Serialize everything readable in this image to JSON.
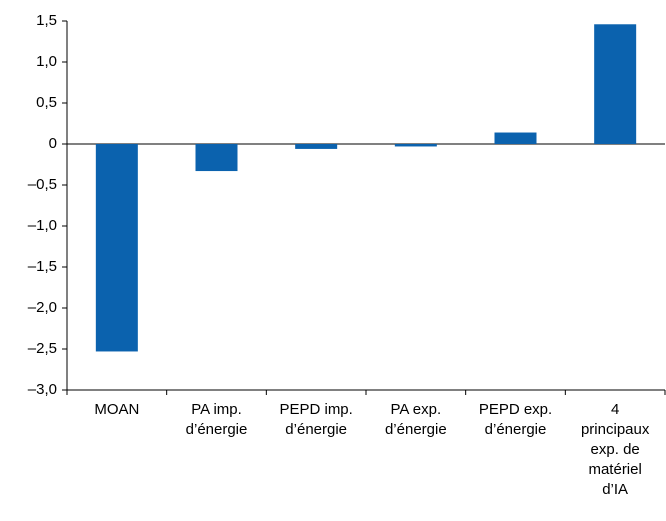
{
  "chart_data": {
    "type": "bar",
    "categories": [
      "MOAN",
      "PA imp.\nd’énergie",
      "PEPD imp.\nd’énergie",
      "PA exp.\nd’énergie",
      "PEPD exp.\nd’énergie",
      "4\nprincipaux\nexp. de\nmatériel\nd’IA"
    ],
    "values": [
      -2.53,
      -0.33,
      -0.06,
      -0.03,
      0.14,
      1.46
    ],
    "color": "#0b62ae",
    "ylim": [
      -3.0,
      1.5
    ],
    "yticks": [
      {
        "value": -3.0,
        "label": "–3,0"
      },
      {
        "value": -2.5,
        "label": "–2,5"
      },
      {
        "value": -2.0,
        "label": "–2,0"
      },
      {
        "value": -1.5,
        "label": "–1,5"
      },
      {
        "value": -1.0,
        "label": "–1,0"
      },
      {
        "value": -0.5,
        "label": "–0,5"
      },
      0,
      {
        "value": 0.5,
        "label": "0,5"
      },
      {
        "value": 1.0,
        "label": "1,0"
      },
      {
        "value": 1.5,
        "label": "1,5"
      }
    ],
    "grid": false
  }
}
